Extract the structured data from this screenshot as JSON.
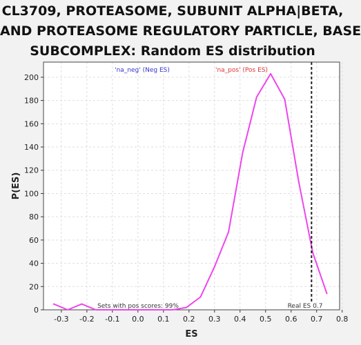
{
  "title_lines": [
    "CL3709, PROTEASOME, SUBUNIT ALPHA|BETA,",
    "AND PROTEASOME REGULATORY PARTICLE, BASE",
    "SUBCOMPLEX: Random ES distribution"
  ],
  "colors": {
    "line": "#ee44ee",
    "neg_legend": "#3333cc",
    "pos_legend": "#dd3333",
    "grid": "#dddddd",
    "plot_bg": "#ffffff",
    "real_es_line": "#222222"
  },
  "chart_data": {
    "type": "line",
    "xlabel": "ES",
    "ylabel": "P(ES)",
    "xlim": [
      -0.37,
      0.79
    ],
    "ylim": [
      0,
      213
    ],
    "grid": true,
    "x_ticks": [
      -0.3,
      -0.2,
      -0.1,
      0.0,
      0.1,
      0.2,
      0.3,
      0.4,
      0.5,
      0.6,
      0.7,
      0.8
    ],
    "x_tick_labels": [
      "-0.3",
      "-0.2",
      "-0.1",
      "0.0",
      "0.1",
      "0.2",
      "0.3",
      "0.4",
      "0.5",
      "0.6",
      "0.7",
      "0.8"
    ],
    "y_ticks": [
      0,
      20,
      40,
      60,
      80,
      100,
      120,
      140,
      160,
      180,
      200
    ],
    "y_tick_labels": [
      "0",
      "20",
      "40",
      "60",
      "80",
      "100",
      "120",
      "140",
      "160",
      "180",
      "200"
    ],
    "series": [
      {
        "x": [
          -0.33,
          -0.275,
          -0.22,
          -0.165,
          -0.11,
          -0.055,
          0.0,
          0.055,
          0.11,
          0.135,
          0.19,
          0.245,
          0.3,
          0.355,
          0.41,
          0.465,
          0.52,
          0.575,
          0.63,
          0.685,
          0.74
        ],
        "y": [
          5,
          0,
          5,
          0,
          0,
          0,
          0,
          0,
          0,
          0,
          2,
          11,
          37,
          67,
          135,
          183,
          203,
          181,
          110,
          49,
          14
        ]
      }
    ],
    "legend_neg": "'na_neg' (Neg ES)",
    "legend_pos": "'na_pos' (Pos ES)",
    "real_es": 0.68,
    "real_es_label": "Real ES 0.7",
    "pos_scores_text": "Sets with pos scores: 99%"
  }
}
